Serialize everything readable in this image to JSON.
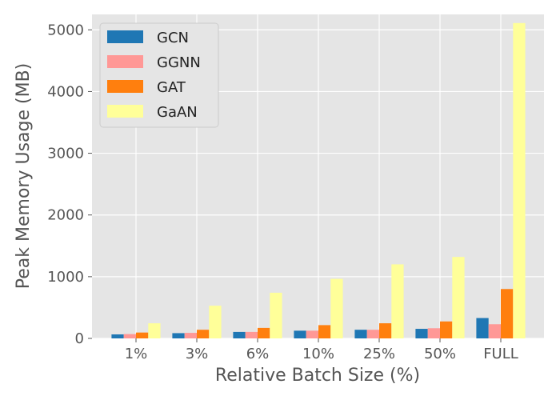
{
  "chart_data": {
    "type": "bar",
    "title": "",
    "xlabel": "Relative Batch Size (%)",
    "ylabel": "Peak Memory Usage (MB)",
    "categories": [
      "1%",
      "3%",
      "6%",
      "10%",
      "25%",
      "50%",
      "FULL"
    ],
    "ylim": [
      0,
      5250
    ],
    "yticks": [
      0,
      1000,
      2000,
      3000,
      4000,
      5000
    ],
    "grid": true,
    "legend_position": "top-left",
    "series": [
      {
        "name": "GCN",
        "color": "#1f77b4",
        "values": [
          65,
          85,
          105,
          125,
          140,
          155,
          330
        ]
      },
      {
        "name": "GGNN",
        "color": "#ff9896",
        "values": [
          70,
          90,
          105,
          125,
          140,
          165,
          230
        ]
      },
      {
        "name": "GAT",
        "color": "#ff7f0e",
        "values": [
          95,
          140,
          170,
          215,
          245,
          275,
          800
        ]
      },
      {
        "name": "GaAN",
        "color": "#ffff99",
        "values": [
          245,
          530,
          740,
          965,
          1200,
          1320,
          5110
        ]
      }
    ]
  }
}
